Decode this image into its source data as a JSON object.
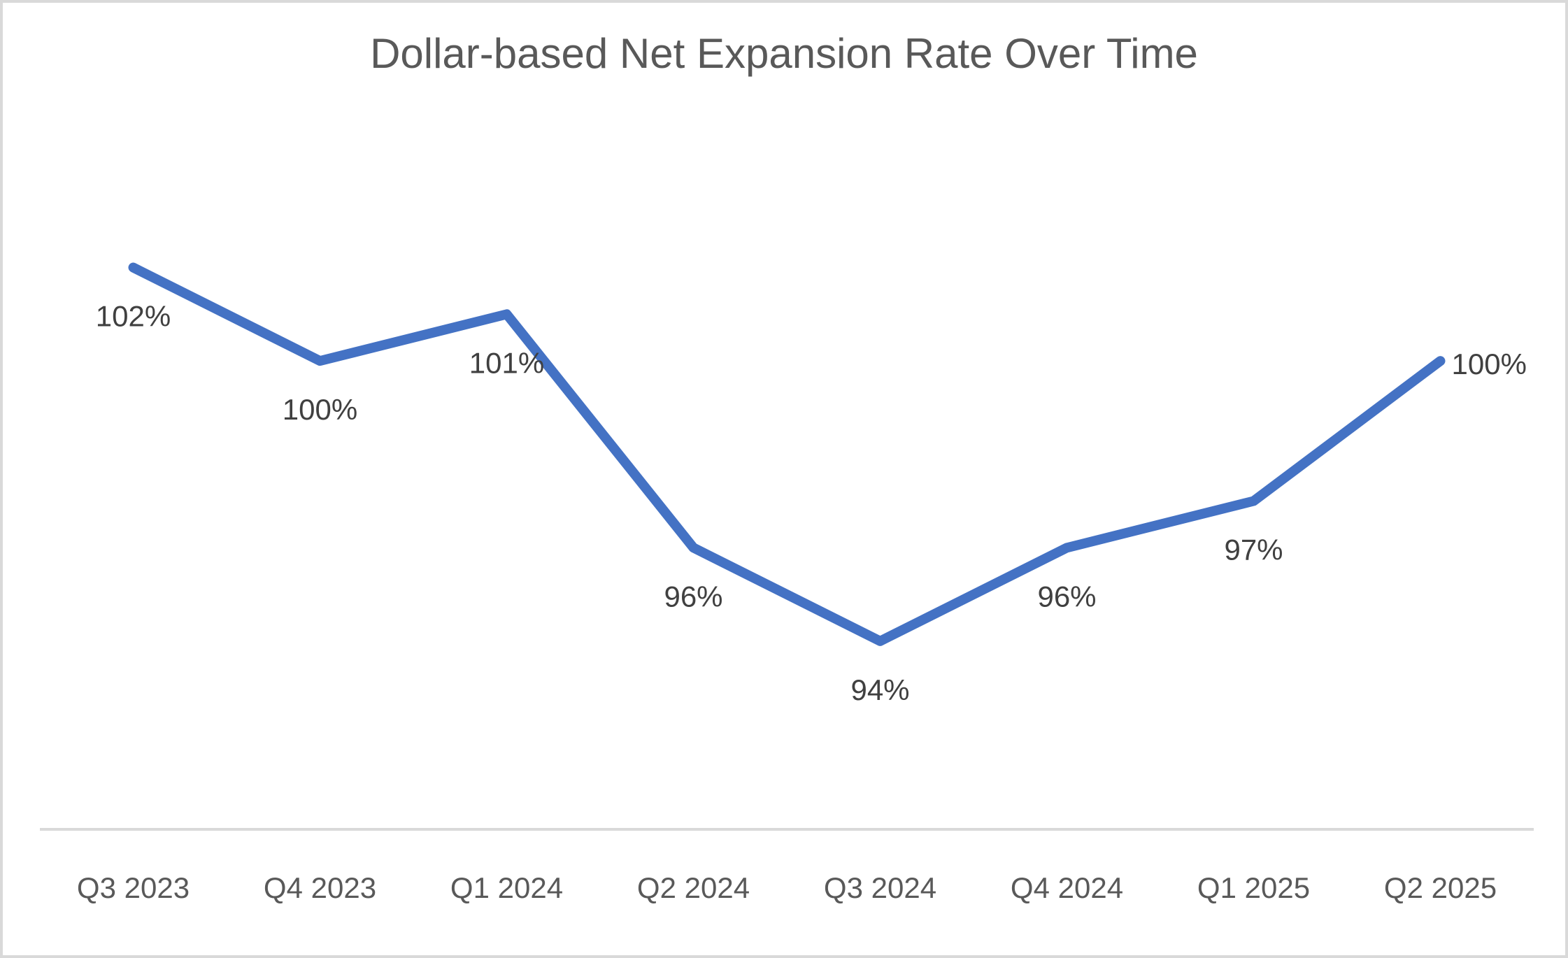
{
  "frame": {
    "background": "#ffffff",
    "border_color": "#d9d9d9"
  },
  "chart_data": {
    "type": "line",
    "title": "Dollar-based Net Expansion Rate Over Time",
    "categories": [
      "Q3 2023",
      "Q4 2023",
      "Q1 2024",
      "Q2 2024",
      "Q3 2024",
      "Q4 2024",
      "Q1 2025",
      "Q2 2025"
    ],
    "series": [
      {
        "name": "Dollar-based Net Expansion Rate",
        "values": [
          102,
          100,
          101,
          96,
          94,
          96,
          97,
          100
        ],
        "data_labels": [
          "102%",
          "100%",
          "101%",
          "96%",
          "94%",
          "96%",
          "97%",
          "100%"
        ],
        "label_positions": [
          "below",
          "below",
          "below",
          "below",
          "below",
          "below",
          "below",
          "right"
        ],
        "line_color": "#4472c4"
      }
    ],
    "xlabel": "",
    "ylabel": "",
    "ylim": [
      90,
      104
    ],
    "grid": false,
    "legend": "none",
    "y_axis_visible": false,
    "x_axis_line_color": "#d9d9d9",
    "title_color": "#595959",
    "data_label_color": "#404040",
    "axis_label_color": "#595959"
  }
}
